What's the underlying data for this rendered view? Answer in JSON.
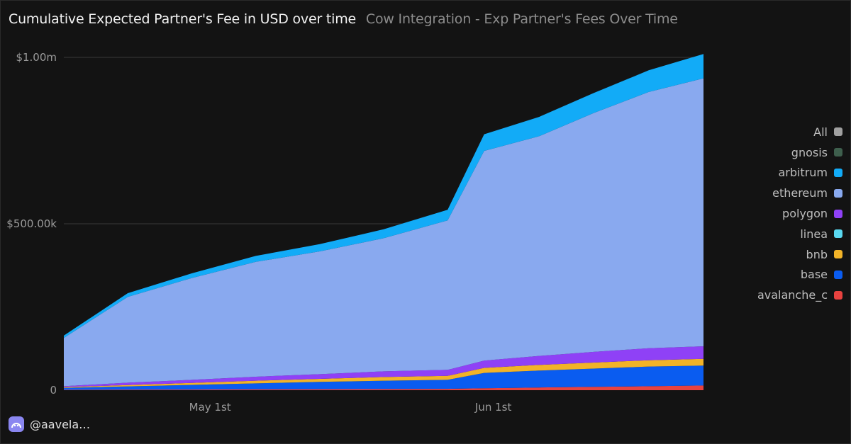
{
  "header": {
    "title": "Cumulative Expected Partner's Fee in USD over time",
    "subtitle": "Cow Integration - Exp Partner's Fees Over Time"
  },
  "footer": {
    "username": "@aavela…"
  },
  "chart_data": {
    "type": "area",
    "stacked": true,
    "ylim": [
      0,
      1000000
    ],
    "yticks": [
      {
        "value": 0,
        "label": "0"
      },
      {
        "value": 500000,
        "label": "$500.00k"
      },
      {
        "value": 1000000,
        "label": "$1.00m"
      }
    ],
    "xlim": [
      "2024-04-15",
      "2024-06-24"
    ],
    "xticks": [
      {
        "value": "2024-05-01",
        "label": "May 1st"
      },
      {
        "value": "2024-06-01",
        "label": "Jun 1st"
      }
    ],
    "x": [
      "2024-04-15",
      "2024-04-22",
      "2024-04-29",
      "2024-05-06",
      "2024-05-13",
      "2024-05-20",
      "2024-05-27",
      "2024-05-31",
      "2024-06-06",
      "2024-06-12",
      "2024-06-18",
      "2024-06-24"
    ],
    "grid": "horizontal",
    "legend_position": "right",
    "legend": [
      "All",
      "gnosis",
      "arbitrum",
      "ethereum",
      "polygon",
      "linea",
      "bnb",
      "base",
      "avalanche_c"
    ],
    "colors": {
      "All": "#a0a0a0",
      "gnosis": "#3e5f4d",
      "arbitrum": "#12abf7",
      "ethereum": "#89a9ef",
      "polygon": "#8f41f6",
      "linea": "#5ad8f0",
      "bnb": "#f2b328",
      "base": "#0a5cf0",
      "avalanche_c": "#e8423f"
    },
    "series": [
      {
        "name": "avalanche_c",
        "values": [
          1000,
          1500,
          2000,
          2500,
          3000,
          3500,
          4000,
          6000,
          8000,
          10000,
          12000,
          14000
        ]
      },
      {
        "name": "base",
        "values": [
          6000,
          10000,
          14000,
          18000,
          22000,
          25000,
          27000,
          46000,
          51000,
          55000,
          59000,
          60000
        ]
      },
      {
        "name": "bnb",
        "values": [
          2000,
          4000,
          6000,
          8000,
          9000,
          11000,
          12000,
          15000,
          17000,
          18000,
          19000,
          20000
        ]
      },
      {
        "name": "linea",
        "values": [
          0,
          0,
          0,
          0,
          0,
          0,
          0,
          0,
          0,
          0,
          0,
          0
        ]
      },
      {
        "name": "polygon",
        "values": [
          3000,
          7000,
          9000,
          12000,
          14000,
          17000,
          18000,
          22000,
          27000,
          32000,
          36000,
          38000
        ]
      },
      {
        "name": "ethereum",
        "values": [
          145000,
          258000,
          306000,
          345000,
          369000,
          400000,
          449000,
          630000,
          660000,
          718000,
          770000,
          805000
        ]
      },
      {
        "name": "arbitrum",
        "values": [
          7000,
          11000,
          14000,
          18000,
          22000,
          27000,
          32000,
          50000,
          58000,
          60000,
          65000,
          73000
        ]
      },
      {
        "name": "gnosis",
        "values": [
          0,
          0,
          0,
          0,
          0,
          0,
          0,
          0,
          0,
          0,
          0,
          0
        ]
      }
    ]
  }
}
